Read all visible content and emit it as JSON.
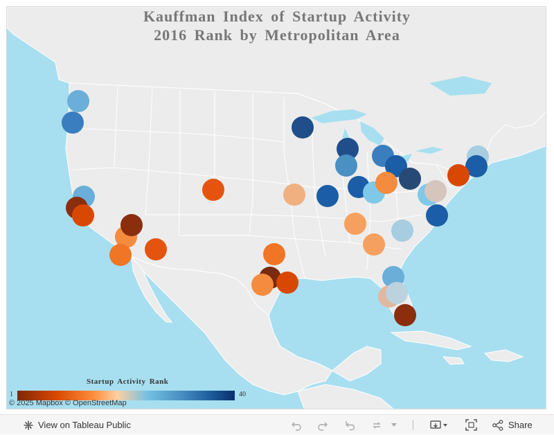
{
  "title": {
    "line1": "Kauffman Index of Startup Activity",
    "line2": "2016 Rank by Metropolitan Area"
  },
  "legend": {
    "title": "Startup Activity Rank",
    "min_label": "1",
    "max_label": "40",
    "colors": [
      "#7f2704",
      "#d94801",
      "#fd8d3c",
      "#fdd0a2",
      "#74c0e3",
      "#4a90c2",
      "#1f5fa0",
      "#08306b"
    ]
  },
  "attribution": "© 2025 Mapbox  © OpenStreetMap",
  "colors": {
    "water": "#a7dff0",
    "land": "#ececec",
    "border": "#ffffff",
    "toolbar_bg": "#f5f5f5"
  },
  "markers": [
    {
      "color": "#6aaed9"
    },
    {
      "color": "#3a7ebf"
    },
    {
      "color": "#6aaed9"
    },
    {
      "color": "#8a2e0e"
    },
    {
      "color": "#d94801"
    },
    {
      "color": "#f58b3e"
    },
    {
      "color": "#f07525"
    },
    {
      "color": "#8a2e0e"
    },
    {
      "color": "#e5540e"
    },
    {
      "color": "#e5540e"
    },
    {
      "color": "#1f4e8a"
    },
    {
      "color": "#f0b080"
    },
    {
      "color": "#1b5da6"
    },
    {
      "color": "#1f4e8a"
    },
    {
      "color": "#4a90c2"
    },
    {
      "color": "#3a7ebf"
    },
    {
      "color": "#1b5da6"
    },
    {
      "color": "#1b5da6"
    },
    {
      "color": "#7fc8e8"
    },
    {
      "color": "#f58b3e"
    },
    {
      "color": "#264a75"
    },
    {
      "color": "#a7cde0"
    },
    {
      "color": "#1b5da6"
    },
    {
      "color": "#d94801"
    },
    {
      "color": "#7fc8e8"
    },
    {
      "color": "#d6c5bc"
    },
    {
      "color": "#1b5da6"
    },
    {
      "color": "#f5a05e"
    },
    {
      "color": "#f5a05e"
    },
    {
      "color": "#a7cde0"
    },
    {
      "color": "#f07525"
    },
    {
      "color": "#7a2a0e"
    },
    {
      "color": "#f58b3e"
    },
    {
      "color": "#d94801"
    },
    {
      "color": "#6aaed9"
    },
    {
      "color": "#e0b8a0"
    },
    {
      "color": "#bcd2de"
    },
    {
      "color": "#8a2e0e"
    }
  ],
  "toolbar": {
    "view_on_public": "View on Tableau Public",
    "share": "Share",
    "icons": [
      "tableau-icon",
      "undo-icon",
      "redo-icon",
      "revert-icon",
      "refresh-icon",
      "dropdown-icon",
      "download-icon",
      "fullscreen-icon",
      "share-icon"
    ]
  }
}
